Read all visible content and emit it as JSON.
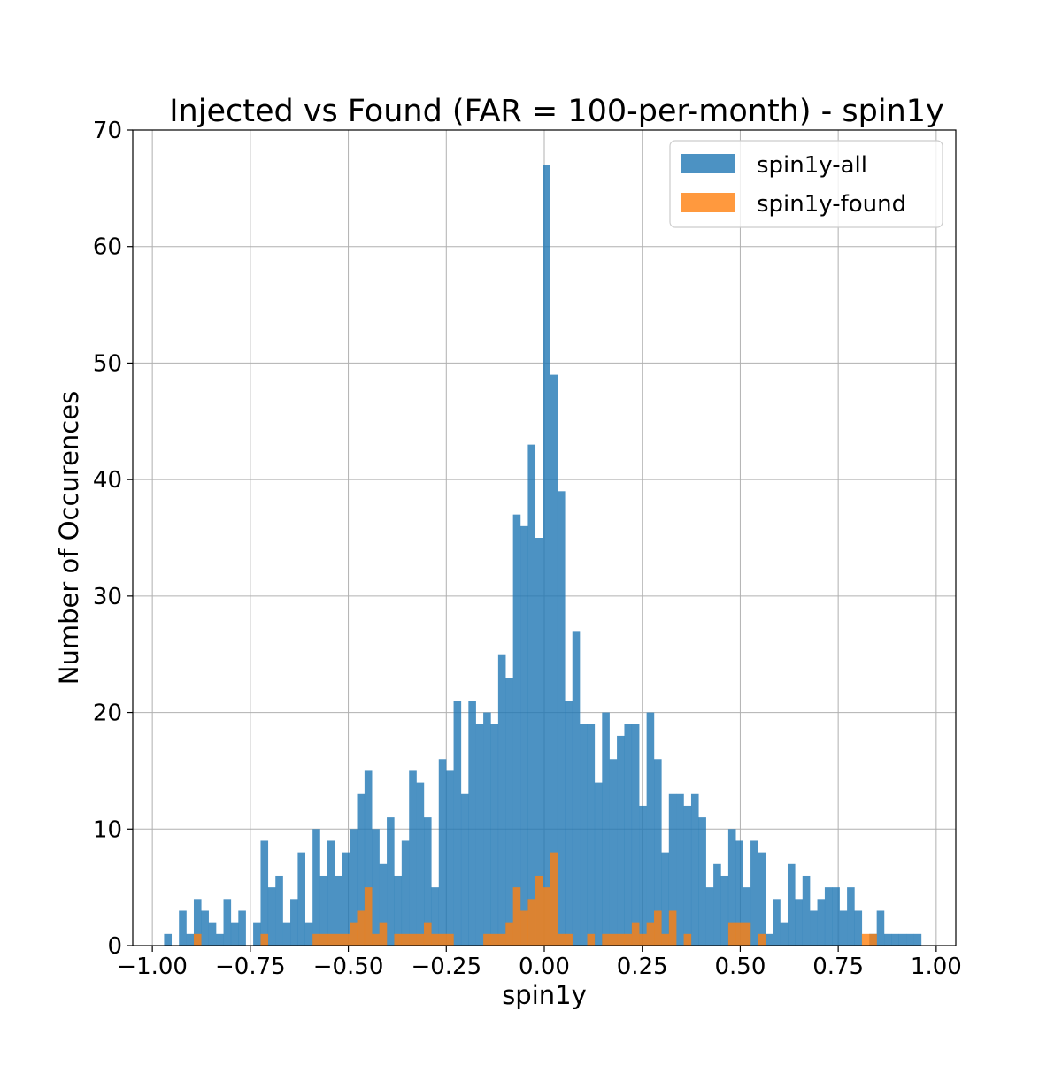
{
  "chart_data": {
    "type": "bar",
    "subtype": "overlaid-histogram",
    "title": "Injected vs Found (FAR = 100-per-month) - spin1y",
    "xlabel": "spin1y",
    "ylabel": "Number of Occurences",
    "xlim": [
      -1.05,
      1.05
    ],
    "ylim": [
      0,
      70
    ],
    "grid": true,
    "legend_position": "top-right",
    "bin_start": -0.97,
    "bin_width": 0.01894,
    "x_ticks": [
      {
        "value": -1.0,
        "label": "−1.00"
      },
      {
        "value": -0.75,
        "label": "−0.75"
      },
      {
        "value": -0.5,
        "label": "−0.50"
      },
      {
        "value": -0.25,
        "label": "−0.25"
      },
      {
        "value": 0.0,
        "label": "0.00"
      },
      {
        "value": 0.25,
        "label": "0.25"
      },
      {
        "value": 0.5,
        "label": "0.50"
      },
      {
        "value": 0.75,
        "label": "0.75"
      },
      {
        "value": 1.0,
        "label": "1.00"
      }
    ],
    "y_ticks": [
      {
        "value": 0,
        "label": "0"
      },
      {
        "value": 10,
        "label": "10"
      },
      {
        "value": 20,
        "label": "20"
      },
      {
        "value": 30,
        "label": "30"
      },
      {
        "value": 40,
        "label": "40"
      },
      {
        "value": 50,
        "label": "50"
      },
      {
        "value": 60,
        "label": "60"
      },
      {
        "value": 70,
        "label": "70"
      }
    ],
    "series": [
      {
        "name": "spin1y-all",
        "color": "#1f77b4",
        "opacity": 0.8,
        "values": [
          1,
          0,
          3,
          1,
          4,
          3,
          2,
          1,
          4,
          2,
          3,
          0,
          2,
          9,
          5,
          6,
          2,
          4,
          8,
          2,
          10,
          6,
          9,
          6,
          8,
          10,
          13,
          15,
          10,
          7,
          11,
          6,
          9,
          15,
          14,
          11,
          5,
          16,
          15,
          21,
          13,
          21,
          19,
          20,
          19,
          25,
          23,
          37,
          36,
          43,
          35,
          67,
          49,
          39,
          21,
          27,
          19,
          19,
          14,
          20,
          16,
          18,
          19,
          19,
          12,
          20,
          16,
          8,
          13,
          13,
          12,
          13,
          11,
          5,
          7,
          6,
          10,
          9,
          5,
          9,
          8,
          1,
          4,
          2,
          7,
          4,
          6,
          3,
          4,
          5,
          5,
          3,
          5,
          3,
          0,
          1,
          3,
          1,
          1,
          1,
          1,
          1
        ]
      },
      {
        "name": "spin1y-found",
        "color": "#ff7f0e",
        "opacity": 0.8,
        "values": [
          0,
          0,
          0,
          0,
          1,
          0,
          0,
          0,
          0,
          0,
          0,
          0,
          0,
          1,
          0,
          0,
          0,
          0,
          0,
          0,
          1,
          1,
          1,
          1,
          1,
          2,
          3,
          5,
          1,
          2,
          0,
          1,
          1,
          1,
          1,
          2,
          1,
          1,
          1,
          0,
          0,
          0,
          0,
          1,
          1,
          1,
          2,
          5,
          3,
          4,
          6,
          5,
          8,
          1,
          1,
          0,
          0,
          1,
          0,
          1,
          1,
          1,
          1,
          2,
          1,
          2,
          3,
          1,
          3,
          0,
          1,
          0,
          0,
          0,
          0,
          0,
          2,
          2,
          2,
          0,
          1,
          0,
          0,
          0,
          0,
          0,
          0,
          0,
          0,
          0,
          0,
          0,
          0,
          0,
          1,
          1,
          0,
          0,
          0,
          0,
          0,
          0
        ]
      }
    ]
  }
}
